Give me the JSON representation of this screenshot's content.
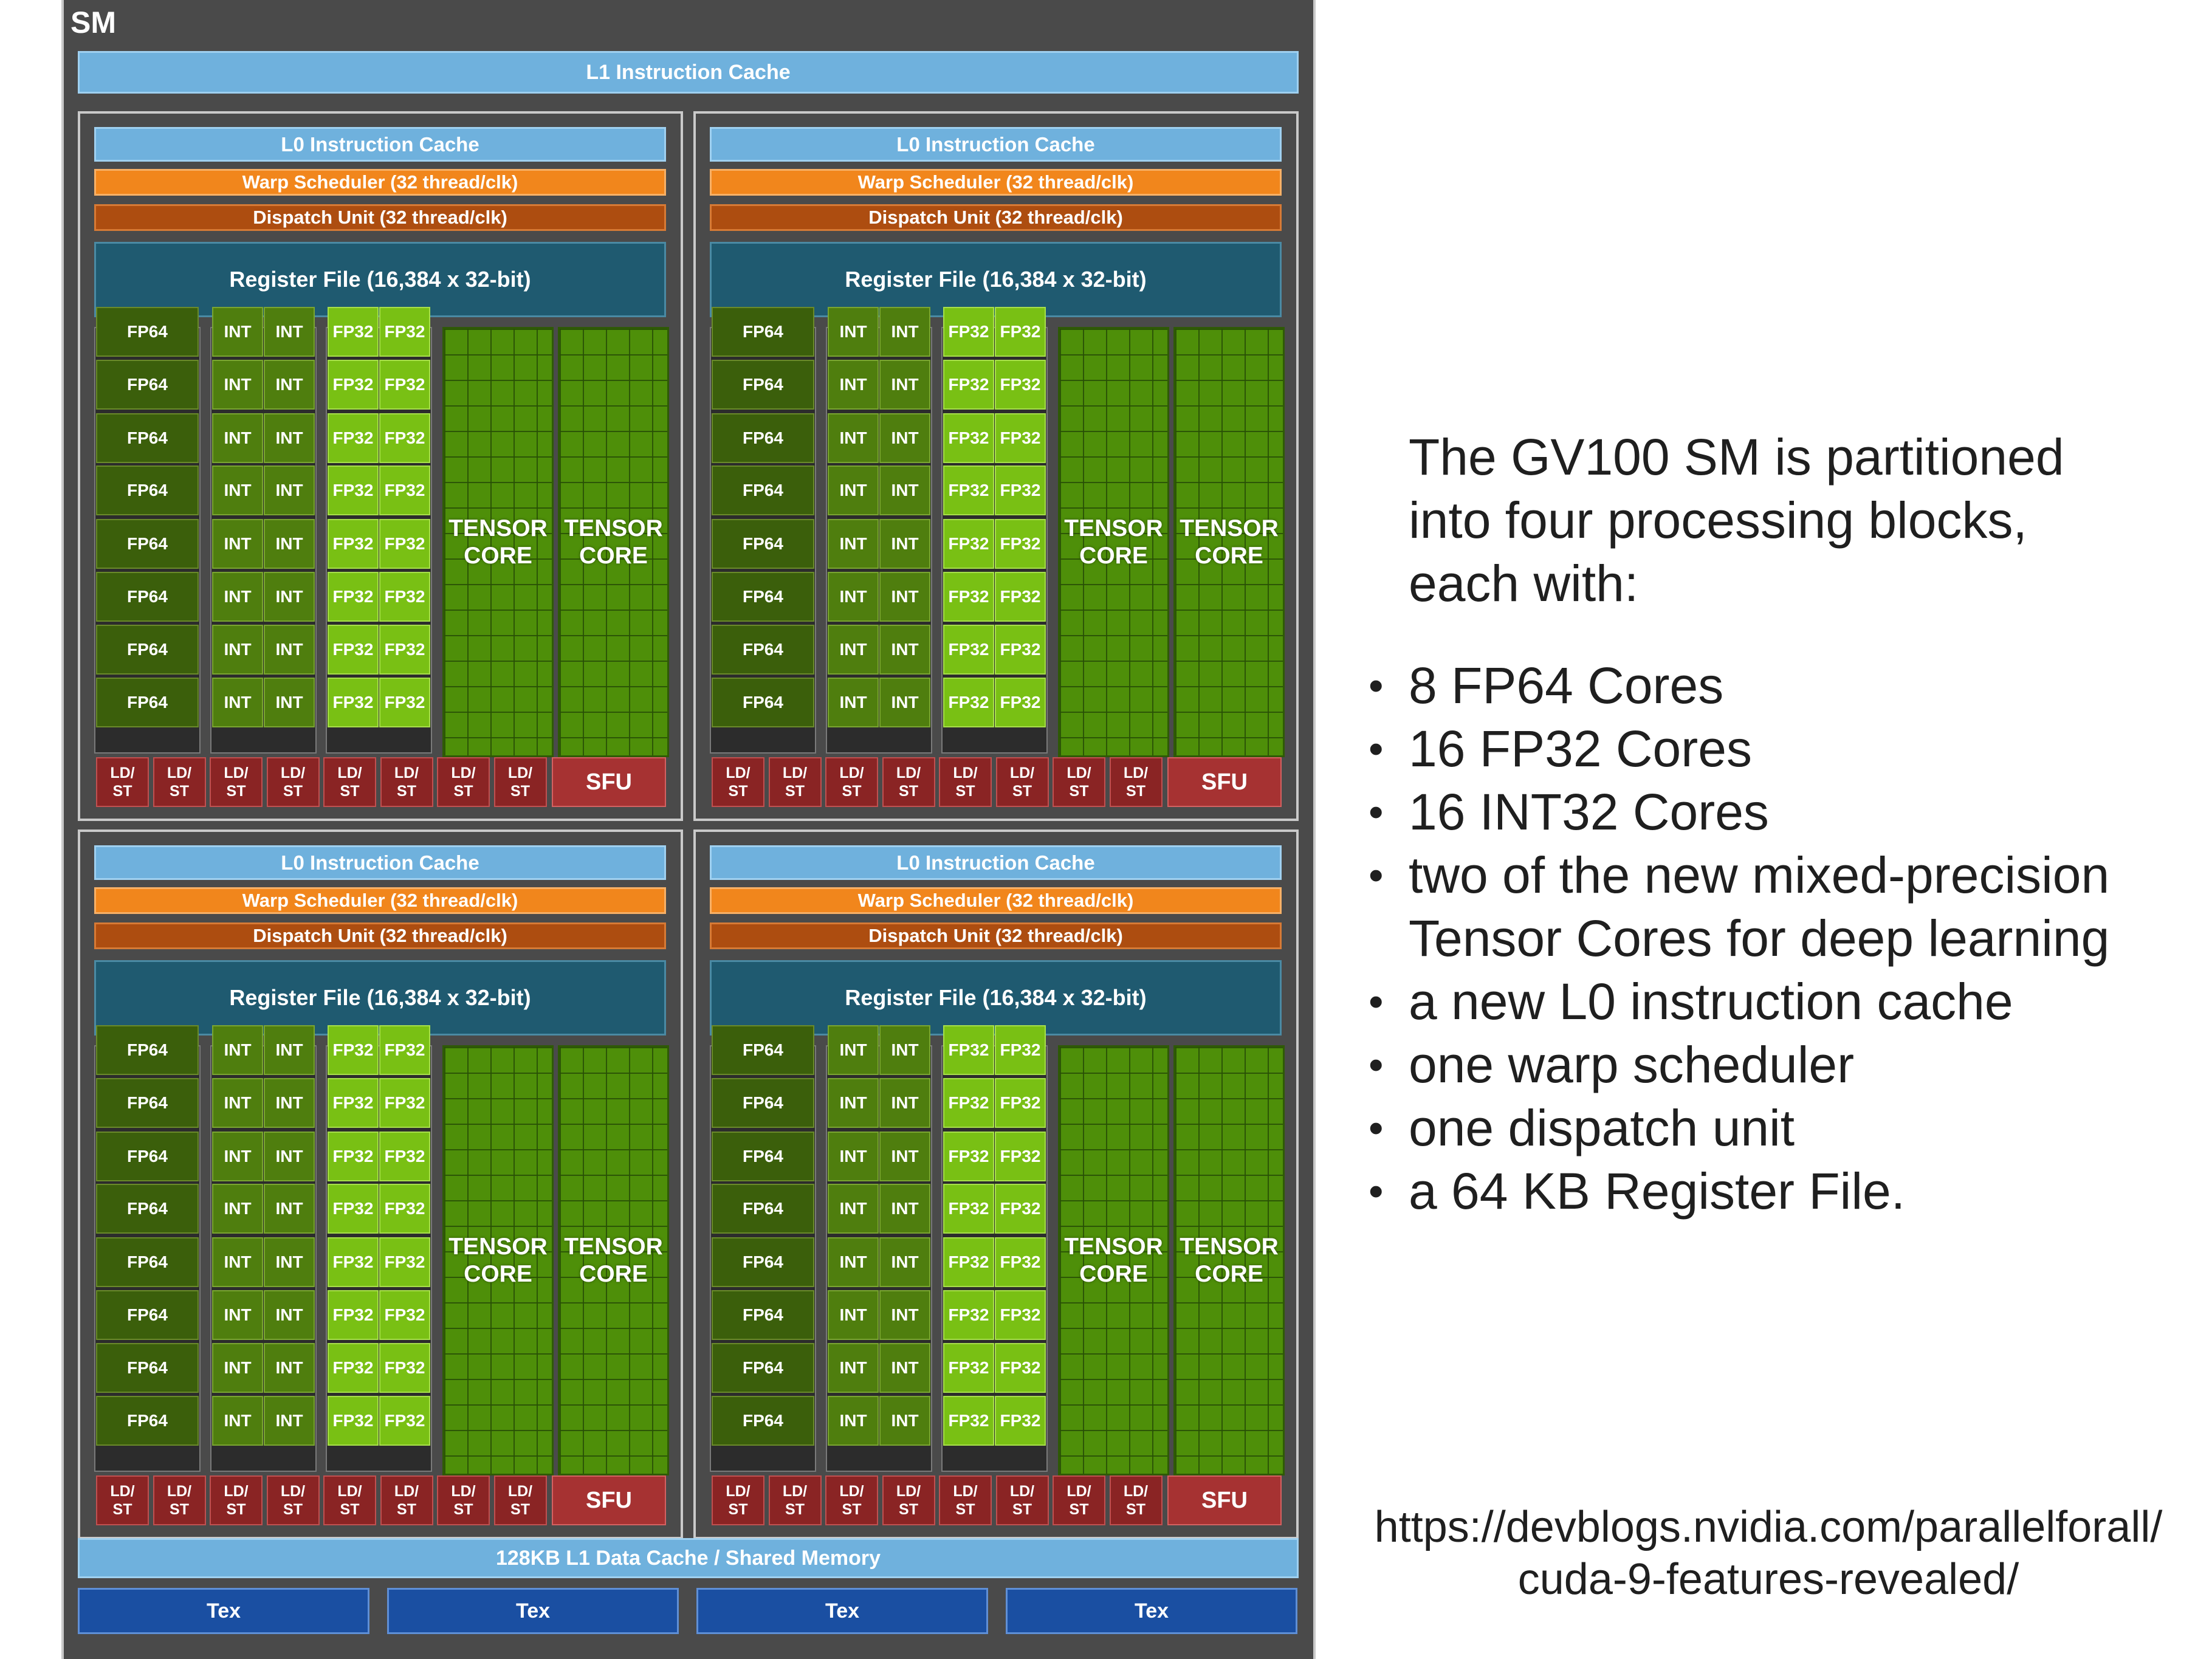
{
  "sm_label": "SM",
  "l1_instruction_cache": "L1 Instruction Cache",
  "block": {
    "l0_cache": "L0 Instruction Cache",
    "warp_scheduler": "Warp Scheduler (32 thread/clk)",
    "dispatch_unit": "Dispatch Unit (32 thread/clk)",
    "register_file": "Register File (16,384 x 32-bit)",
    "fp64": "FP64",
    "int": "INT",
    "fp32": "FP32",
    "tensor_line1": "TENSOR",
    "tensor_line2": "CORE",
    "ldst_line1": "LD/",
    "ldst_line2": "ST",
    "sfu": "SFU"
  },
  "l1_data_cache": "128KB L1 Data Cache / Shared Memory",
  "tex_units": [
    "Tex",
    "Tex",
    "Tex",
    "Tex"
  ],
  "description": {
    "intro_lines": [
      "The GV100 SM is partitioned",
      "into four processing blocks,",
      "each with:"
    ],
    "bullets": [
      [
        "8 FP64 Cores"
      ],
      [
        "16 FP32 Cores"
      ],
      [
        "16 INT32 Cores"
      ],
      [
        "two of the new mixed-precision",
        "Tensor Cores for deep learning"
      ],
      [
        "a new L0 instruction cache"
      ],
      [
        "one warp scheduler"
      ],
      [
        "one dispatch unit"
      ],
      [
        "a 64 KB Register File."
      ]
    ]
  },
  "source_lines": [
    "https://devblogs.nvidia.com/parallelforall/",
    "cuda-9-features-revealed/"
  ]
}
